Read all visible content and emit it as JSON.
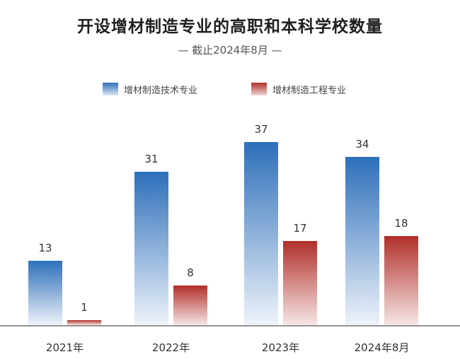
{
  "title": "开设增材制造专业的高职和本科学校数量",
  "subtitle": "— 截止2024年8月 —",
  "colors": {
    "series1_top": "#2d6fba",
    "series2_top": "#b12f2a"
  },
  "chart_data": {
    "type": "bar",
    "title": "开设增材制造专业的高职和本科学校数量",
    "subtitle": "截止2024年8月",
    "categories": [
      "2021年",
      "2022年",
      "2023年",
      "2024年8月"
    ],
    "series": [
      {
        "name": "增材制造技术专业",
        "values": [
          13,
          31,
          37,
          34
        ]
      },
      {
        "name": "增材制造工程专业",
        "values": [
          1,
          8,
          17,
          18
        ]
      }
    ],
    "xlabel": "",
    "ylabel": "",
    "ylim": [
      0,
      40
    ],
    "legend": "top-center",
    "grid": false
  }
}
